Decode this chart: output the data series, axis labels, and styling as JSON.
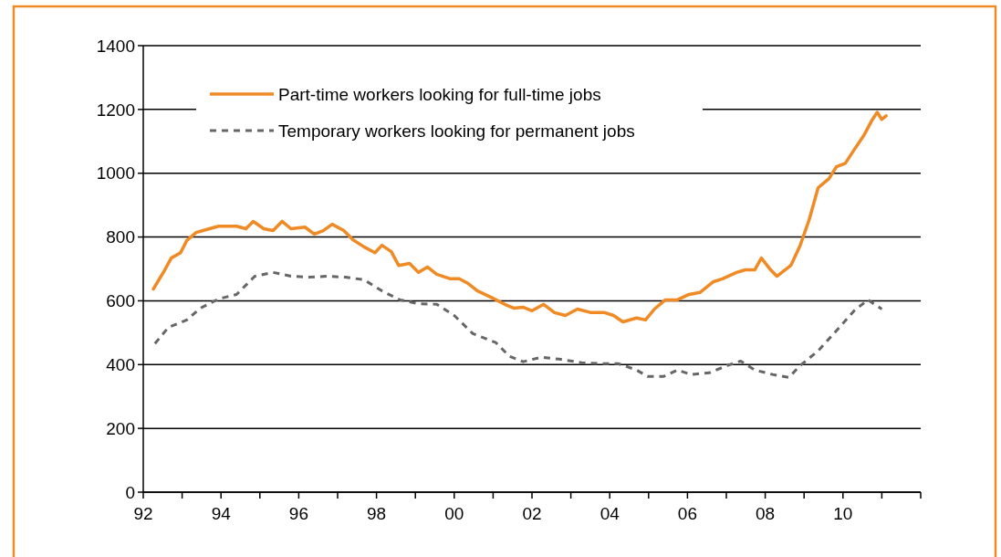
{
  "chart_data": {
    "type": "line",
    "xlim": [
      1992,
      2012
    ],
    "xticks": [
      {
        "value": 1992,
        "label": "92"
      },
      {
        "value": 1993,
        "label": null
      },
      {
        "value": 1994,
        "label": "94"
      },
      {
        "value": 1995,
        "label": null
      },
      {
        "value": 1996,
        "label": "96"
      },
      {
        "value": 1997,
        "label": null
      },
      {
        "value": 1998,
        "label": "98"
      },
      {
        "value": 1999,
        "label": null
      },
      {
        "value": 2000,
        "label": "00"
      },
      {
        "value": 2001,
        "label": null
      },
      {
        "value": 2002,
        "label": "02"
      },
      {
        "value": 2003,
        "label": null
      },
      {
        "value": 2004,
        "label": "04"
      },
      {
        "value": 2005,
        "label": null
      },
      {
        "value": 2006,
        "label": "06"
      },
      {
        "value": 2007,
        "label": null
      },
      {
        "value": 2008,
        "label": "08"
      },
      {
        "value": 2009,
        "label": null
      },
      {
        "value": 2010,
        "label": "10"
      },
      {
        "value": 2011,
        "label": null
      },
      {
        "value": 2012,
        "label": null
      }
    ],
    "ylim": [
      0,
      1400
    ],
    "yticks": [
      0,
      200,
      400,
      600,
      800,
      1000,
      1200,
      1400
    ],
    "grid": "y",
    "legend": "top left",
    "marker": "none",
    "series": [
      {
        "name": "Part-time workers looking for full-time jobs",
        "color": "#f08a24",
        "line_style": "solid",
        "x": [
          1992.26,
          1992.54,
          1992.72,
          1992.96,
          1993.12,
          1993.36,
          1993.7,
          1993.94,
          1994.4,
          1994.64,
          1994.83,
          1995.1,
          1995.34,
          1995.57,
          1995.8,
          1996.16,
          1996.4,
          1996.63,
          1996.86,
          1997.16,
          1997.4,
          1997.68,
          1997.96,
          1998.14,
          1998.38,
          1998.57,
          1998.85,
          1999.08,
          1999.31,
          1999.55,
          1999.9,
          2000.13,
          2000.36,
          2000.6,
          2000.95,
          2001.3,
          2001.53,
          2001.77,
          2002.0,
          2002.3,
          2002.58,
          2002.86,
          2003.17,
          2003.52,
          2003.87,
          2004.1,
          2004.34,
          2004.69,
          2004.92,
          2005.15,
          2005.43,
          2005.74,
          2006.04,
          2006.32,
          2006.67,
          2006.9,
          2007.26,
          2007.49,
          2007.73,
          2007.9,
          2008.14,
          2008.3,
          2008.66,
          2008.9,
          2009.13,
          2009.36,
          2009.64,
          2009.83,
          2010.06,
          2010.29,
          2010.53,
          2010.76,
          2010.88,
          2011.0,
          2011.11
        ],
        "values": [
          637,
          694,
          734,
          751,
          789,
          814,
          826,
          834,
          834,
          826,
          849,
          826,
          820,
          849,
          826,
          831,
          809,
          820,
          840,
          820,
          791,
          769,
          751,
          774,
          754,
          711,
          717,
          689,
          706,
          683,
          669,
          669,
          654,
          631,
          611,
          589,
          577,
          580,
          569,
          589,
          563,
          554,
          574,
          563,
          563,
          554,
          534,
          546,
          540,
          574,
          603,
          603,
          620,
          626,
          660,
          669,
          689,
          697,
          697,
          734,
          697,
          677,
          711,
          774,
          854,
          954,
          983,
          1020,
          1031,
          1074,
          1117,
          1169,
          1191,
          1169,
          1180
        ]
      },
      {
        "name": "Temporary workers looking for permanent jobs",
        "color": "#666666",
        "line_style": "dashed",
        "x": [
          1992.3,
          1992.65,
          1993.12,
          1993.47,
          1993.94,
          1994.4,
          1994.87,
          1995.34,
          1995.8,
          1996.27,
          1996.74,
          1997.2,
          1997.68,
          1998.14,
          1998.6,
          1999.08,
          1999.55,
          2000.0,
          2000.48,
          2001.07,
          2001.42,
          2001.77,
          2002.23,
          2002.7,
          2003.28,
          2003.75,
          2004.22,
          2004.69,
          2004.97,
          2005.39,
          2005.74,
          2006.09,
          2006.56,
          2007.02,
          2007.37,
          2007.73,
          2008.19,
          2008.61,
          2008.9,
          2009.36,
          2009.83,
          2010.29,
          2010.64,
          2011.0
        ],
        "values": [
          466,
          517,
          540,
          577,
          606,
          620,
          677,
          689,
          677,
          674,
          677,
          674,
          666,
          631,
          603,
          591,
          589,
          554,
          497,
          469,
          426,
          409,
          423,
          417,
          406,
          403,
          403,
          383,
          363,
          363,
          383,
          369,
          374,
          397,
          411,
          383,
          369,
          360,
          397,
          443,
          506,
          569,
          603,
          574
        ]
      }
    ]
  }
}
